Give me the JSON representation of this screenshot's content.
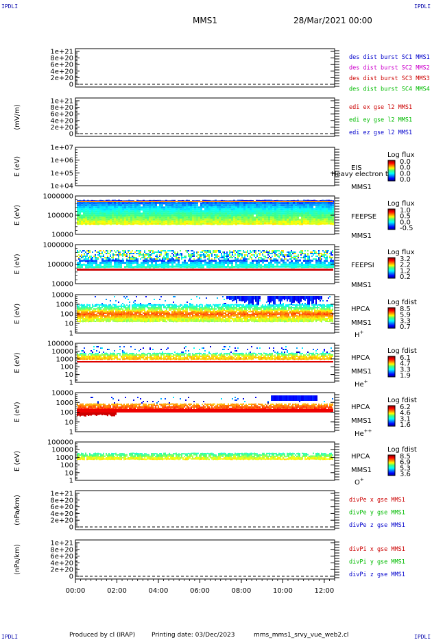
{
  "header": {
    "corner_tl": "IPDLI",
    "corner_tr": "IPDLI",
    "corner_bl": "IPDLI",
    "corner_br": "IPDLI",
    "spacecraft": "MMS1",
    "date": "28/Mar/2021 00:00"
  },
  "footer": {
    "produced": "Produced by cl (IRAP)",
    "printing": "Printing date: 03/Dec/2023",
    "script": "mms_mms1_srvy_vue_web2.cl"
  },
  "colors": {
    "mms1": "#0000cc",
    "mms2": "#cc00cc",
    "mms3": "#cc0000",
    "mms4": "#00bb00",
    "x": "#cc0000",
    "y": "#00bb00",
    "z": "#0000cc"
  },
  "chart_data": [
    {
      "id": "des-dist",
      "type": "line",
      "yticks": [
        "1e+21",
        "8e+20",
        "6e+20",
        "4e+20",
        "2e+20",
        "0"
      ],
      "ylabel": "",
      "legend": [
        {
          "text": "des dist burst SC1 MMS1",
          "color": "#0000cc"
        },
        {
          "text": "des dist burst SC2 MMS2",
          "color": "#cc00cc"
        },
        {
          "text": "des dist burst SC3 MMS3",
          "color": "#cc0000"
        },
        {
          "text": "des dist burst SC4 MMS4",
          "color": "#00bb00"
        }
      ]
    },
    {
      "id": "edi",
      "type": "line",
      "yticks": [
        "1e+21",
        "8e+20",
        "6e+20",
        "4e+20",
        "2e+20",
        "0"
      ],
      "ylabel": "(mV/m)",
      "legend": [
        {
          "text": "edi ex gse l2 MMS1",
          "color": "#cc0000"
        },
        {
          "text": "edi ey gse l2 MMS1",
          "color": "#00bb00"
        },
        {
          "text": "edi ez gse l2 MMS1",
          "color": "#0000cc"
        }
      ]
    },
    {
      "id": "eis",
      "type": "heatmap",
      "yticks": [
        "1e+07",
        "1e+06",
        "1e+05",
        "1e+04"
      ],
      "ylabel": "E (eV)",
      "instrument": [
        "EIS",
        "MMS1"
      ],
      "overlay": "Heavy electron to",
      "cbar_title": "Log flux",
      "cbar_ticks": [
        "0.0",
        "0.0",
        "0.0",
        "0.0"
      ]
    },
    {
      "id": "feepse",
      "type": "heatmap",
      "yticks": [
        "1000000",
        "100000",
        "10000"
      ],
      "ylabel": "E (eV)",
      "instrument": [
        "FEEPSE",
        "MMS1"
      ],
      "cbar_title": "Log flux",
      "cbar_ticks": [
        "1.0",
        "0.5",
        "0.0",
        "-0.5"
      ]
    },
    {
      "id": "feepsi",
      "type": "heatmap",
      "yticks": [
        "1000000",
        "100000",
        "10000"
      ],
      "ylabel": "E (eV)",
      "instrument": [
        "FEEPSI",
        "MMS1"
      ],
      "cbar_title": "Log flux",
      "cbar_ticks": [
        "3.2",
        "2.2",
        "1.2",
        "0.2"
      ]
    },
    {
      "id": "hpca-h",
      "type": "heatmap",
      "yticks": [
        "10000",
        "1000",
        "100",
        "10",
        "1"
      ],
      "ylabel": "E (eV)",
      "instrument": [
        "HPCA",
        "MMS1"
      ],
      "species": "H",
      "species_sup": "+",
      "cbar_title": "Log fdist",
      "cbar_ticks": [
        "8.5",
        "5.9",
        "3.3",
        "0.7"
      ]
    },
    {
      "id": "hpca-he",
      "type": "heatmap",
      "yticks": [
        "100000",
        "10000",
        "1000",
        "100",
        "10",
        "1"
      ],
      "ylabel": "E (eV)",
      "instrument": [
        "HPCA",
        "MMS1"
      ],
      "species": "He",
      "species_sup": "+",
      "cbar_title": "Log fdist",
      "cbar_ticks": [
        "6.1",
        "4.7",
        "3.3",
        "1.9"
      ]
    },
    {
      "id": "hpca-he2",
      "type": "heatmap",
      "yticks": [
        "10000",
        "1000",
        "100",
        "10",
        "1"
      ],
      "ylabel": "E (eV)",
      "instrument": [
        "HPCA",
        "MMS1"
      ],
      "species": "He",
      "species_sup": "++",
      "cbar_title": "Log fdist",
      "cbar_ticks": [
        "6.2",
        "4.6",
        "3.1",
        "1.6"
      ]
    },
    {
      "id": "hpca-o",
      "type": "heatmap",
      "yticks": [
        "100000",
        "10000",
        "1000",
        "100",
        "10",
        "1"
      ],
      "ylabel": "E (eV)",
      "instrument": [
        "HPCA",
        "MMS1"
      ],
      "species": "O",
      "species_sup": "+",
      "cbar_title": "Log fdist",
      "cbar_ticks": [
        "8.5",
        "6.9",
        "5.3",
        "3.6"
      ]
    },
    {
      "id": "divpe",
      "type": "line",
      "yticks": [
        "1e+21",
        "8e+20",
        "6e+20",
        "4e+20",
        "2e+20",
        "0"
      ],
      "ylabel": "(nPa/km)",
      "legend": [
        {
          "text": "divPe x gse MMS1",
          "color": "#cc0000"
        },
        {
          "text": "divPe y gse MMS1",
          "color": "#00bb00"
        },
        {
          "text": "divPe z gse MMS1",
          "color": "#0000cc"
        }
      ]
    },
    {
      "id": "divpi",
      "type": "line",
      "yticks": [
        "1e+21",
        "8e+20",
        "6e+20",
        "4e+20",
        "2e+20",
        "0"
      ],
      "ylabel": "(nPa/km)",
      "legend": [
        {
          "text": "divPi x gse MMS1",
          "color": "#cc0000"
        },
        {
          "text": "divPi y gse MMS1",
          "color": "#00bb00"
        },
        {
          "text": "divPi z gse MMS1",
          "color": "#0000cc"
        }
      ]
    }
  ],
  "xaxis": {
    "ticks": [
      "00:00",
      "02:00",
      "04:00",
      "06:00",
      "08:00",
      "10:00",
      "12:00"
    ],
    "range_hours": [
      0,
      12.5
    ]
  }
}
